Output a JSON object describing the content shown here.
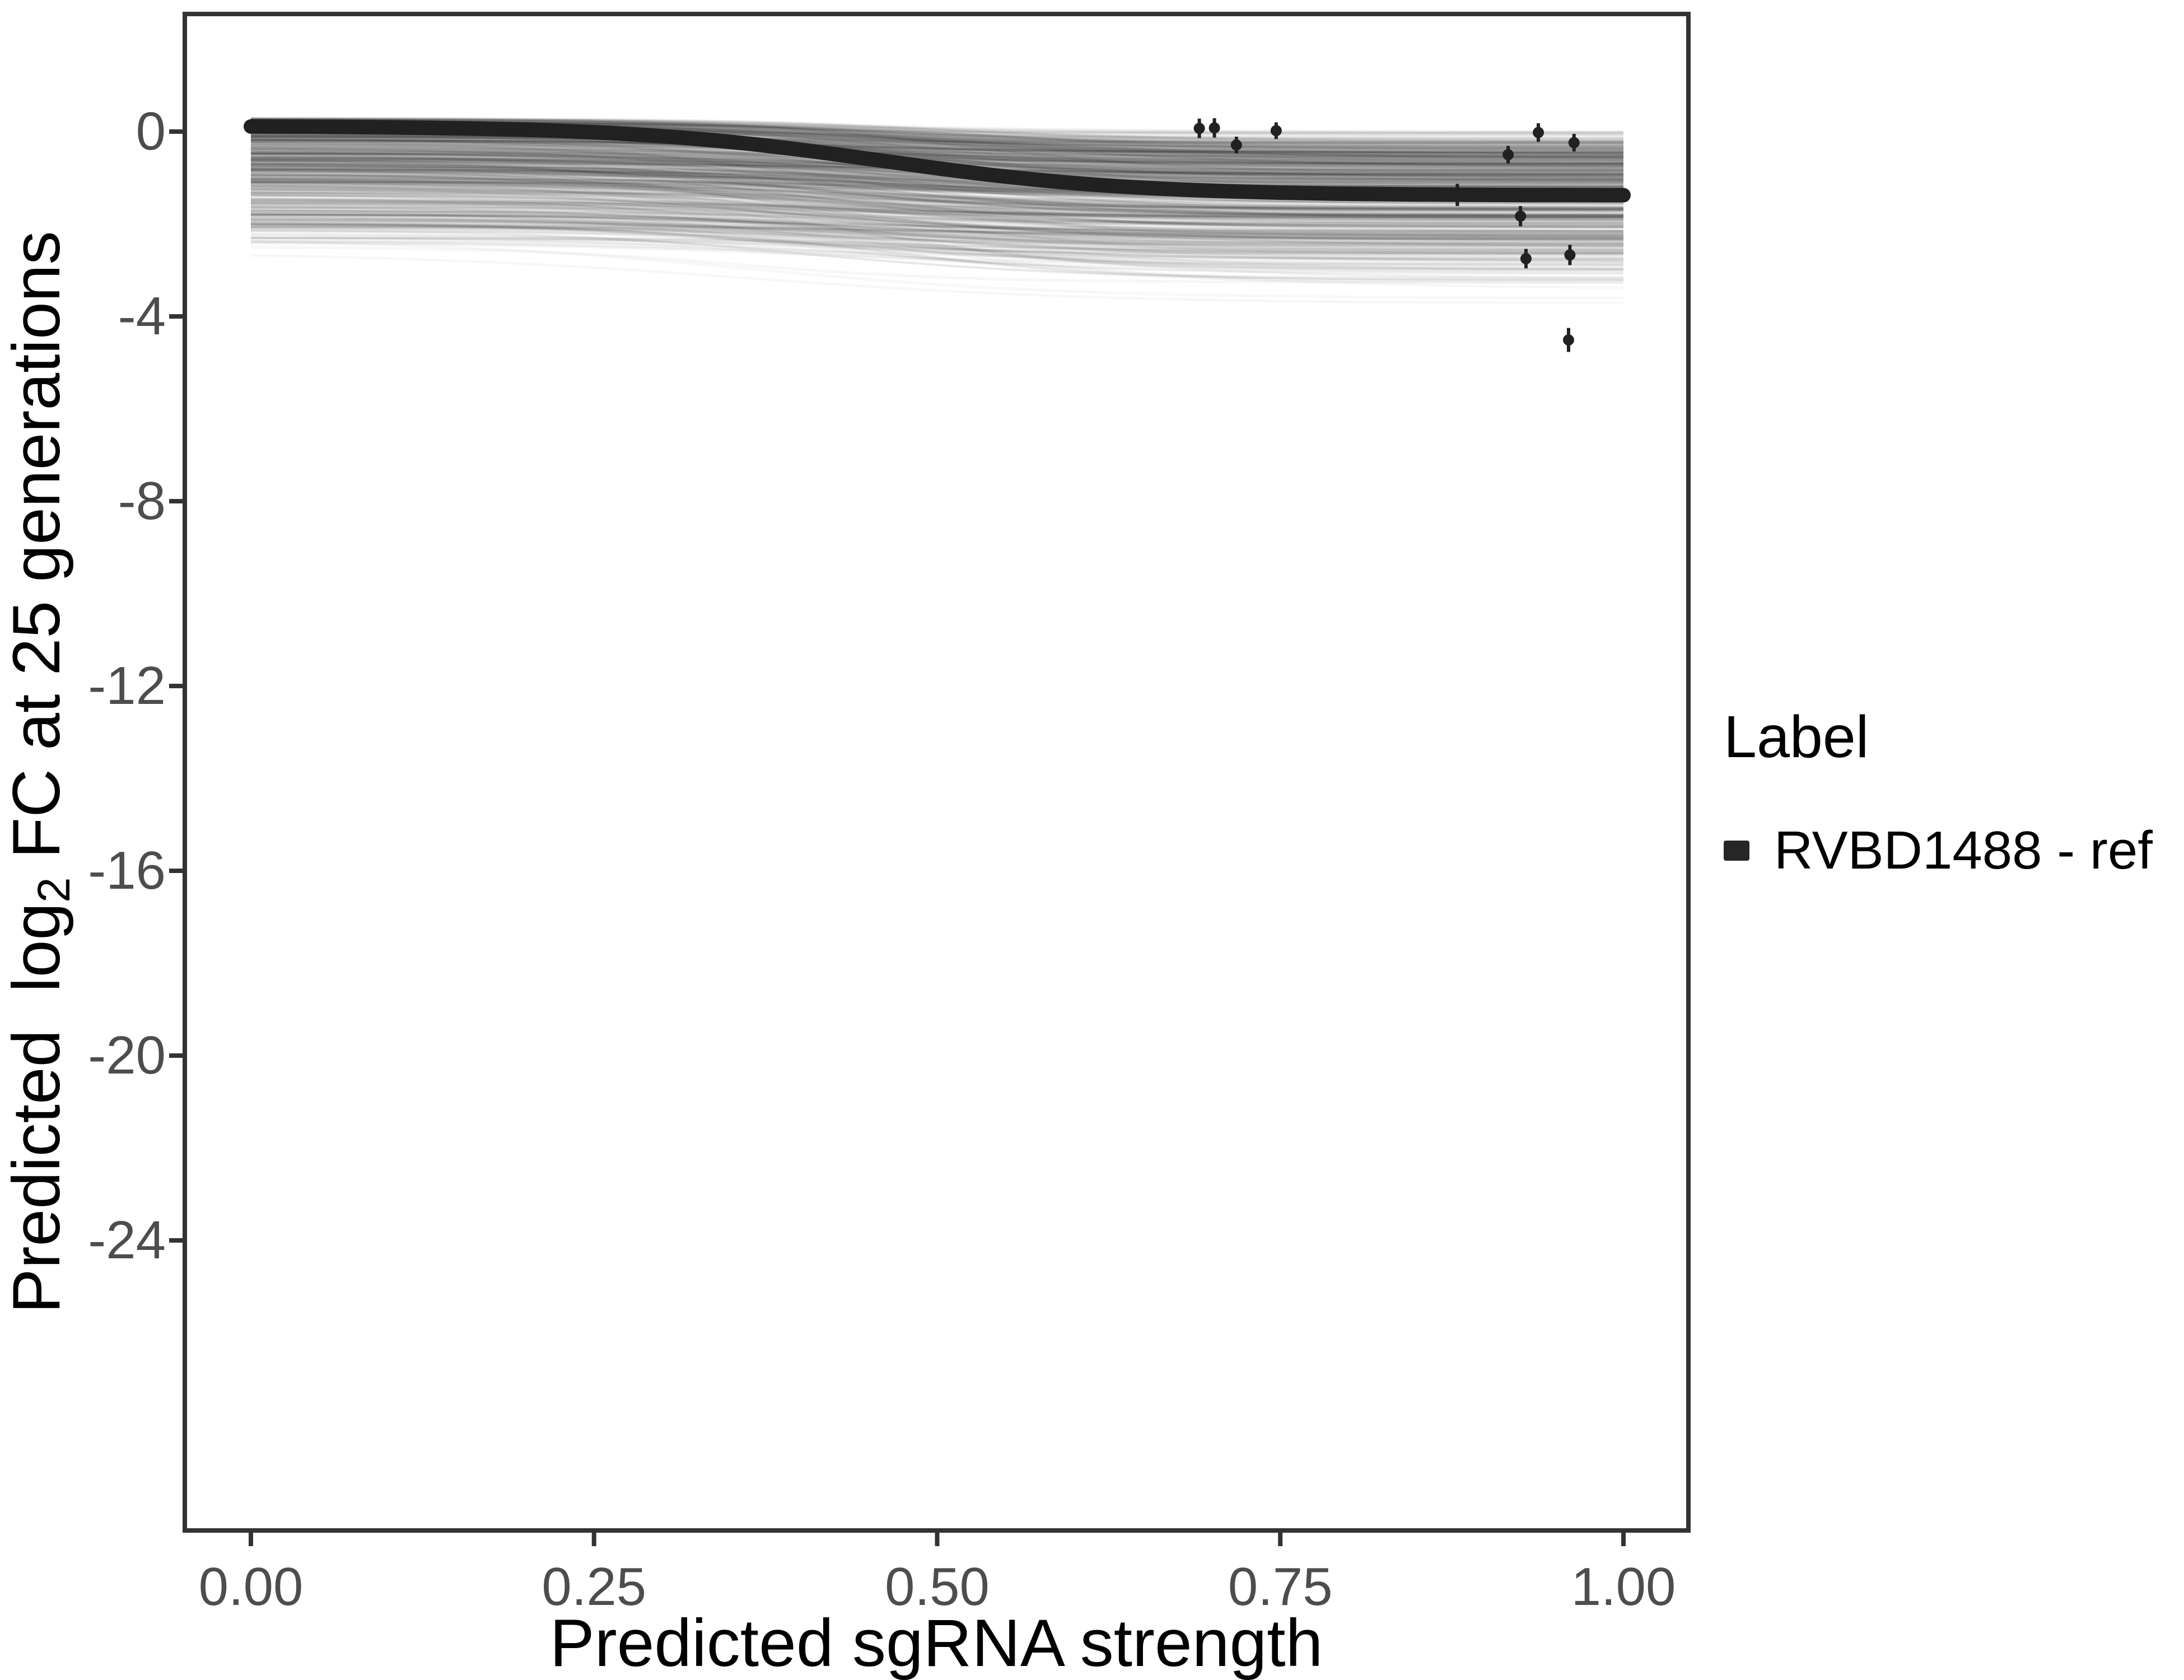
{
  "figure": {
    "background": "#ffffff"
  },
  "axes": {
    "x": {
      "title": "Predicted sgRNA strength",
      "tick_labels": [
        "0.00",
        "0.25",
        "0.50",
        "0.75",
        "1.00"
      ],
      "tick_values": [
        0,
        0.25,
        0.5,
        0.75,
        1.0
      ]
    },
    "y": {
      "title": "Predicted log2 FC at 25 generations",
      "title_prefix": "Predicted  log",
      "title_sub": "2",
      "title_suffix": " FC at 25 generations",
      "tick_labels": [
        "0",
        "-4",
        "-8",
        "-12",
        "-16",
        "-20",
        "-24"
      ],
      "tick_values": [
        0,
        -4,
        -8,
        -12,
        -16,
        -20,
        -24
      ]
    }
  },
  "legend": {
    "title": "Label",
    "position": "right",
    "entries": [
      {
        "label": "RVBD1488 - ref",
        "color": "#262626",
        "key": "thick-line"
      }
    ]
  },
  "colors": {
    "panel_border": "#333333",
    "tick_mark": "#333333",
    "tick_text": "#4d4d4d",
    "fit_curve": "#212121",
    "points": "#212121",
    "band_line": "#000000",
    "background": "#ffffff"
  },
  "chart_data": {
    "type": "line",
    "title": "",
    "xlabel": "Predicted sgRNA strength",
    "ylabel": "Predicted log2 FC at 25 generations",
    "xlim": [
      -0.049,
      1.047
    ],
    "ylim": [
      -30.3,
      2.55
    ],
    "grid": "off",
    "legend_position": "right",
    "x_ticks": [
      0,
      0.25,
      0.5,
      0.75,
      1.0
    ],
    "y_ticks": [
      0,
      -4,
      -8,
      -12,
      -16,
      -20,
      -24
    ],
    "series": [
      {
        "name": "RVBD1488 - ref",
        "kind": "sigmoid-fit-line",
        "stroke_width_px": 26,
        "params": {
          "upper": 0.12,
          "lower": -1.38,
          "midpoint": 0.46,
          "slope": 11
        },
        "x_range": [
          0,
          1
        ],
        "sampled_x": [
          0.0,
          0.1,
          0.2,
          0.3,
          0.4,
          0.5,
          0.6,
          0.7,
          0.8,
          0.9,
          1.0
        ],
        "sampled_y": [
          0.11,
          0.09,
          0.04,
          -0.1,
          -0.39,
          -0.79,
          -1.12,
          -1.28,
          -1.35,
          -1.37,
          -1.38
        ]
      },
      {
        "name": "posterior-sample-curves",
        "kind": "uncertainty-band-spaghetti",
        "description": "Many translucent gray sigmoid sample curves spanning x 0 to 1; dense band from about y +0.2 to -1.7 at left and -0.2 to -2.1 at right, faint wisps down to about -3.0 (left) and -3.4 (right)",
        "envelope_top_left": 0.3,
        "envelope_bottom_left": -3.0,
        "envelope_top_right": -0.02,
        "envelope_bottom_right": -3.4,
        "generator": {
          "n": 620,
          "seed": 11,
          "opacity": 0.03,
          "line_width": 4
        }
      },
      {
        "name": "observed-sgRNA-points",
        "kind": "scatter-errorbar",
        "point_radius_px": 10,
        "points": [
          {
            "x": 0.691,
            "y": 0.07,
            "err": 0.21
          },
          {
            "x": 0.702,
            "y": 0.08,
            "err": 0.21
          },
          {
            "x": 0.718,
            "y": -0.29,
            "err": 0.18
          },
          {
            "x": 0.747,
            "y": 0.02,
            "err": 0.18
          },
          {
            "x": 0.879,
            "y": -1.37,
            "err": 0.24
          },
          {
            "x": 0.916,
            "y": -0.5,
            "err": 0.19
          },
          {
            "x": 0.938,
            "y": -0.02,
            "err": 0.2
          },
          {
            "x": 0.964,
            "y": -0.24,
            "err": 0.19
          },
          {
            "x": 0.925,
            "y": -1.83,
            "err": 0.22
          },
          {
            "x": 0.929,
            "y": -2.75,
            "err": 0.21
          },
          {
            "x": 0.961,
            "y": -2.67,
            "err": 0.22
          },
          {
            "x": 0.96,
            "y": -4.51,
            "err": 0.26
          }
        ]
      }
    ]
  }
}
